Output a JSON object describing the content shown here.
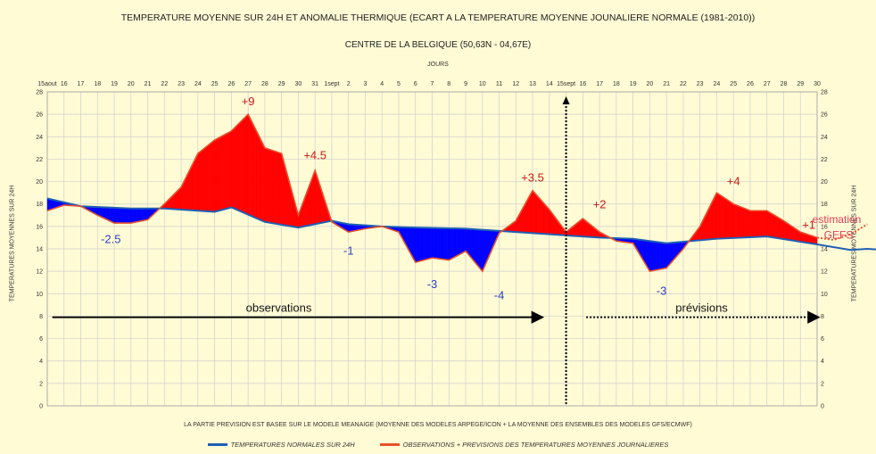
{
  "chart_data": {
    "type": "area",
    "title": "TEMPERATURE MOYENNE SUR 24H ET  ANOMALIE THERMIQUE (ECART A LA TEMPERATURE MOYENNE JOUNALIERE NORMALE (1981-2010))",
    "subtitle": "CENTRE DE LA BELGIQUE (50,63N - 04,67E)",
    "xlabel": "JOURS",
    "ylabel": "TEMPERATURES MOYENNES SUR 24H",
    "ylim": [
      0,
      28
    ],
    "yticks": [
      0,
      2,
      4,
      6,
      8,
      10,
      12,
      14,
      16,
      18,
      20,
      22,
      24,
      26,
      28
    ],
    "grid": true,
    "x_tick_labels": [
      "15aout",
      "16",
      "17",
      "18",
      "19",
      "20",
      "21",
      "22",
      "23",
      "24",
      "25",
      "26",
      "27",
      "28",
      "29",
      "30",
      "31",
      "1sept",
      "2",
      "3",
      "4",
      "5",
      "6",
      "7",
      "8",
      "9",
      "10",
      "11",
      "12",
      "13",
      "14",
      "15sept",
      "16",
      "17",
      "18",
      "19",
      "20",
      "21",
      "22",
      "23",
      "24",
      "25",
      "26",
      "27",
      "28",
      "29",
      "30"
    ],
    "day_index_start": 15,
    "series": [
      {
        "name": "TEMPERATURES NORMALES SUR 24H",
        "color": "#1f5fb4",
        "points": [
          [
            15,
            18.5
          ],
          [
            17,
            17.8
          ],
          [
            20,
            17.6
          ],
          [
            22,
            17.6
          ],
          [
            25,
            17.3
          ],
          [
            26,
            17.7
          ],
          [
            28,
            16.4
          ],
          [
            30,
            15.9
          ],
          [
            32,
            16.5
          ],
          [
            33,
            16.2
          ],
          [
            35,
            16.0
          ],
          [
            37,
            15.9
          ],
          [
            40,
            15.8
          ],
          [
            43,
            15.5
          ],
          [
            46,
            15.2
          ],
          [
            48,
            15.0
          ],
          [
            50,
            14.9
          ],
          [
            52,
            14.5
          ],
          [
            55,
            14.9
          ],
          [
            58,
            15.1
          ],
          [
            61,
            14.4
          ],
          [
            63,
            13.9
          ],
          [
            64,
            14.0
          ],
          [
            66,
            13.8
          ],
          [
            67,
            14.0
          ],
          [
            69,
            14.1
          ],
          [
            70,
            13.8
          ]
        ]
      },
      {
        "name": "OBSERVATIONS + PREVISIONS DES TEMPERATURES MOYENNES JOURNALIERES",
        "color": "#e8502a",
        "points": [
          [
            15,
            17.4
          ],
          [
            16,
            17.9
          ],
          [
            17,
            17.8
          ],
          [
            18,
            17.0
          ],
          [
            19,
            16.3
          ],
          [
            20,
            16.3
          ],
          [
            21,
            16.6
          ],
          [
            22,
            18.0
          ],
          [
            23,
            19.5
          ],
          [
            24,
            22.5
          ],
          [
            25,
            23.7
          ],
          [
            26,
            24.5
          ],
          [
            27,
            26.0
          ],
          [
            28,
            23.0
          ],
          [
            29,
            22.5
          ],
          [
            30,
            17.0
          ],
          [
            31,
            21.0
          ],
          [
            32,
            16.4
          ],
          [
            33,
            15.5
          ],
          [
            34,
            15.8
          ],
          [
            35,
            16.0
          ],
          [
            36,
            15.5
          ],
          [
            37,
            12.8
          ],
          [
            38,
            13.2
          ],
          [
            39,
            13.0
          ],
          [
            40,
            13.8
          ],
          [
            41,
            12.0
          ],
          [
            42,
            15.4
          ],
          [
            43,
            16.5
          ],
          [
            44,
            19.2
          ],
          [
            45,
            17.5
          ],
          [
            46,
            15.5
          ],
          [
            47,
            16.7
          ],
          [
            48,
            15.5
          ],
          [
            49,
            14.7
          ],
          [
            50,
            14.5
          ],
          [
            51,
            12.0
          ],
          [
            52,
            12.3
          ],
          [
            53,
            14.0
          ],
          [
            54,
            16.0
          ],
          [
            55,
            19.0
          ],
          [
            56,
            18.0
          ],
          [
            57,
            17.4
          ],
          [
            58,
            17.4
          ],
          [
            59,
            16.5
          ],
          [
            60,
            15.5
          ],
          [
            61,
            15.0
          ]
        ]
      },
      {
        "name": "estimation GEFS",
        "color": "#e8502a",
        "dashed": true,
        "points": [
          [
            61,
            15.0
          ],
          [
            62,
            14.8
          ],
          [
            63,
            15.3
          ],
          [
            64,
            16.2
          ]
        ]
      }
    ],
    "positive_fill_color": "#ff0000",
    "negative_fill_color": "#0000ff",
    "forecast_divider_x": 46,
    "annotations": [
      {
        "text": "+9",
        "x": 27,
        "y": 26.8,
        "color": "#c81a1a"
      },
      {
        "text": "+4.5",
        "x": 31,
        "y": 22.0,
        "color": "#c81a1a"
      },
      {
        "text": "+3.5",
        "x": 44,
        "y": 20.0,
        "color": "#c81a1a"
      },
      {
        "text": "+2",
        "x": 48,
        "y": 17.6,
        "color": "#c81a1a"
      },
      {
        "text": "+4",
        "x": 56,
        "y": 19.7,
        "color": "#c81a1a"
      },
      {
        "text": "+1",
        "x": 60.5,
        "y": 15.8,
        "color": "#c81a1a"
      },
      {
        "text": "-2.5",
        "x": 18.8,
        "y": 14.5,
        "color": "#2b3fc4"
      },
      {
        "text": "-1",
        "x": 33,
        "y": 13.5,
        "color": "#2b3fc4"
      },
      {
        "text": "-3",
        "x": 38,
        "y": 10.5,
        "color": "#2b3fc4"
      },
      {
        "text": "-4",
        "x": 42,
        "y": 9.5,
        "color": "#2b3fc4"
      },
      {
        "text": "-3",
        "x": 51.7,
        "y": 9.9,
        "color": "#2b3fc4"
      }
    ],
    "gefs_label": [
      "estimation",
      "GEFS"
    ],
    "arrows": [
      {
        "label": "observations",
        "from": 15.3,
        "to": 44.5,
        "y": 7.9,
        "dotted": false
      },
      {
        "label": "prévisions",
        "from": 47.2,
        "to": 61,
        "y": 7.9,
        "dotted": true
      }
    ],
    "footnote": "LA PARTIE PREVISION EST BASEE SUR LE MODELE MEANAIGE (MOYENNE DES MODELES ARPEGE/ICON + LA MOYENNE DES ENSEMBLES DES MODELES GFS/ECMWF)"
  }
}
